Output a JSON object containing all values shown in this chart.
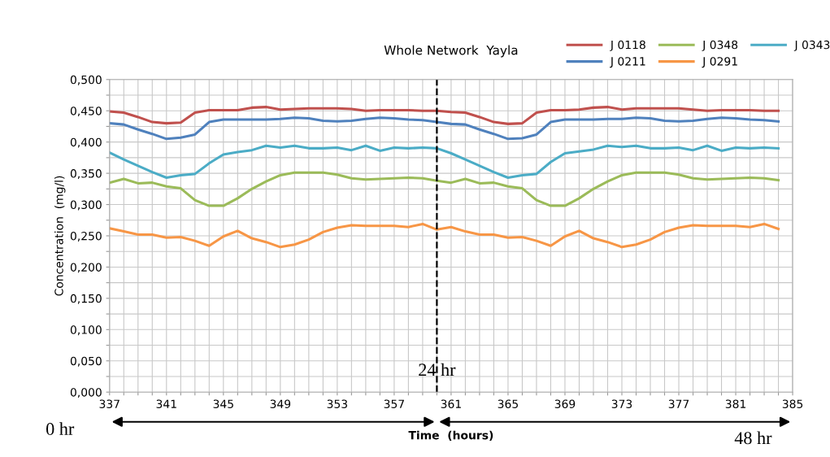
{
  "chart_data": {
    "type": "line",
    "title": "Whole Network  Yayla",
    "xlabel": "Time  (hours)",
    "ylabel": "Concentration  (mg/l)",
    "x": [
      337,
      338,
      339,
      340,
      341,
      342,
      343,
      344,
      345,
      346,
      347,
      348,
      349,
      350,
      351,
      352,
      353,
      354,
      355,
      356,
      357,
      358,
      359,
      360,
      361,
      362,
      363,
      364,
      365,
      366,
      367,
      368,
      369,
      370,
      371,
      372,
      373,
      374,
      375,
      376,
      377,
      378,
      379,
      380,
      381,
      382,
      383,
      384
    ],
    "series": [
      {
        "name": "J 0118",
        "color": "#c0504d",
        "values": [
          0.449,
          0.447,
          0.44,
          0.432,
          0.43,
          0.431,
          0.447,
          0.451,
          0.451,
          0.451,
          0.455,
          0.456,
          0.452,
          0.453,
          0.454,
          0.454,
          0.454,
          0.453,
          0.45,
          0.451,
          0.451,
          0.451,
          0.45,
          0.45,
          0.448,
          0.447,
          0.44,
          0.432,
          0.429,
          0.43,
          0.447,
          0.451,
          0.451,
          0.452,
          0.455,
          0.456,
          0.452,
          0.454,
          0.454,
          0.454,
          0.454,
          0.452,
          0.45,
          0.451,
          0.451,
          0.451,
          0.45,
          0.45
        ]
      },
      {
        "name": "J 0211",
        "color": "#4f81bd",
        "values": [
          0.43,
          0.428,
          0.42,
          0.413,
          0.405,
          0.407,
          0.412,
          0.432,
          0.436,
          0.436,
          0.436,
          0.436,
          0.437,
          0.439,
          0.438,
          0.434,
          0.433,
          0.434,
          0.437,
          0.439,
          0.438,
          0.436,
          0.435,
          0.432,
          0.429,
          0.428,
          0.42,
          0.413,
          0.405,
          0.406,
          0.412,
          0.432,
          0.436,
          0.436,
          0.436,
          0.437,
          0.437,
          0.439,
          0.438,
          0.434,
          0.433,
          0.434,
          0.437,
          0.439,
          0.438,
          0.436,
          0.435,
          0.433
        ]
      },
      {
        "name": "J 0348",
        "color": "#9bbb59",
        "values": [
          0.335,
          0.341,
          0.334,
          0.335,
          0.329,
          0.326,
          0.307,
          0.298,
          0.298,
          0.31,
          0.325,
          0.337,
          0.347,
          0.351,
          0.351,
          0.351,
          0.348,
          0.342,
          0.34,
          0.341,
          0.342,
          0.343,
          0.342,
          0.338,
          0.335,
          0.341,
          0.334,
          0.335,
          0.329,
          0.326,
          0.307,
          0.298,
          0.298,
          0.31,
          0.325,
          0.337,
          0.347,
          0.351,
          0.351,
          0.351,
          0.348,
          0.342,
          0.34,
          0.341,
          0.342,
          0.343,
          0.342,
          0.339
        ]
      },
      {
        "name": "J 0291",
        "color": "#f79646",
        "values": [
          0.262,
          0.257,
          0.252,
          0.252,
          0.247,
          0.248,
          0.242,
          0.234,
          0.249,
          0.258,
          0.246,
          0.24,
          0.232,
          0.236,
          0.244,
          0.256,
          0.263,
          0.267,
          0.266,
          0.266,
          0.266,
          0.264,
          0.269,
          0.26,
          0.264,
          0.257,
          0.252,
          0.252,
          0.247,
          0.248,
          0.242,
          0.234,
          0.249,
          0.258,
          0.246,
          0.24,
          0.232,
          0.236,
          0.244,
          0.256,
          0.263,
          0.267,
          0.266,
          0.266,
          0.266,
          0.264,
          0.269,
          0.261
        ]
      },
      {
        "name": "J 0343",
        "color": "#4bacc6",
        "values": [
          0.383,
          0.372,
          0.362,
          0.352,
          0.343,
          0.347,
          0.349,
          0.366,
          0.38,
          0.384,
          0.387,
          0.394,
          0.391,
          0.394,
          0.39,
          0.39,
          0.391,
          0.387,
          0.394,
          0.386,
          0.391,
          0.39,
          0.391,
          0.39,
          0.382,
          0.372,
          0.362,
          0.352,
          0.343,
          0.347,
          0.349,
          0.368,
          0.382,
          0.385,
          0.388,
          0.394,
          0.392,
          0.394,
          0.39,
          0.39,
          0.391,
          0.387,
          0.394,
          0.386,
          0.391,
          0.39,
          0.391,
          0.39
        ]
      }
    ],
    "xlim": [
      337,
      385
    ],
    "xticks": [
      337,
      {
        "value": 338,
        "label": null
      },
      {
        "value": 339,
        "label": null
      },
      {
        "value": 340,
        "label": null
      },
      341,
      {
        "value": 342,
        "label": null
      },
      {
        "value": 343,
        "label": null
      },
      {
        "value": 344,
        "label": null
      },
      345,
      {
        "value": 346,
        "label": null
      },
      {
        "value": 347,
        "label": null
      },
      {
        "value": 348,
        "label": null
      },
      349,
      {
        "value": 350,
        "label": null
      },
      {
        "value": 351,
        "label": null
      },
      {
        "value": 352,
        "label": null
      },
      353,
      {
        "value": 354,
        "label": null
      },
      {
        "value": 355,
        "label": null
      },
      {
        "value": 356,
        "label": null
      },
      357,
      {
        "value": 358,
        "label": null
      },
      {
        "value": 359,
        "label": null
      },
      {
        "value": 360,
        "label": null
      },
      361,
      {
        "value": 362,
        "label": null
      },
      {
        "value": 363,
        "label": null
      },
      {
        "value": 364,
        "label": null
      },
      365,
      {
        "value": 366,
        "label": null
      },
      {
        "value": 367,
        "label": null
      },
      {
        "value": 368,
        "label": null
      },
      369,
      {
        "value": 370,
        "label": null
      },
      {
        "value": 371,
        "label": null
      },
      {
        "value": 372,
        "label": null
      },
      373,
      {
        "value": 374,
        "label": null
      },
      {
        "value": 375,
        "label": null
      },
      {
        "value": 376,
        "label": null
      },
      377,
      {
        "value": 378,
        "label": null
      },
      {
        "value": 379,
        "label": null
      },
      {
        "value": 380,
        "label": null
      },
      381,
      {
        "value": 382,
        "label": null
      },
      {
        "value": 383,
        "label": null
      },
      {
        "value": 384,
        "label": null
      },
      385
    ],
    "ylim": [
      0,
      0.5
    ],
    "yticks": [
      {
        "value": 0,
        "label": "0,000"
      },
      {
        "value": 0.025,
        "label": null
      },
      {
        "value": 0.05,
        "label": "0,050"
      },
      {
        "value": 0.075,
        "label": null
      },
      {
        "value": 0.1,
        "label": "0,100"
      },
      {
        "value": 0.125,
        "label": null
      },
      {
        "value": 0.15,
        "label": "0,150"
      },
      {
        "value": 0.175,
        "label": null
      },
      {
        "value": 0.2,
        "label": "0,200"
      },
      {
        "value": 0.225,
        "label": null
      },
      {
        "value": 0.25,
        "label": "0,250"
      },
      {
        "value": 0.275,
        "label": null
      },
      {
        "value": 0.3,
        "label": "0,300"
      },
      {
        "value": 0.325,
        "label": null
      },
      {
        "value": 0.35,
        "label": "0,350"
      },
      {
        "value": 0.375,
        "label": null
      },
      {
        "value": 0.4,
        "label": "0,400"
      },
      {
        "value": 0.425,
        "label": null
      },
      {
        "value": 0.45,
        "label": "0,450"
      },
      {
        "value": 0.475,
        "label": null
      },
      {
        "value": 0.5,
        "label": "0,500"
      }
    ],
    "grid": true,
    "legend": "top right",
    "marker": "none",
    "line_style": "solid",
    "ref_lines": [
      {
        "axis": "x",
        "value": 360,
        "label": "24 hr",
        "color": "#000000",
        "line_style": "dashed"
      }
    ],
    "annotations": [
      "0 hr",
      "48 hr"
    ]
  }
}
